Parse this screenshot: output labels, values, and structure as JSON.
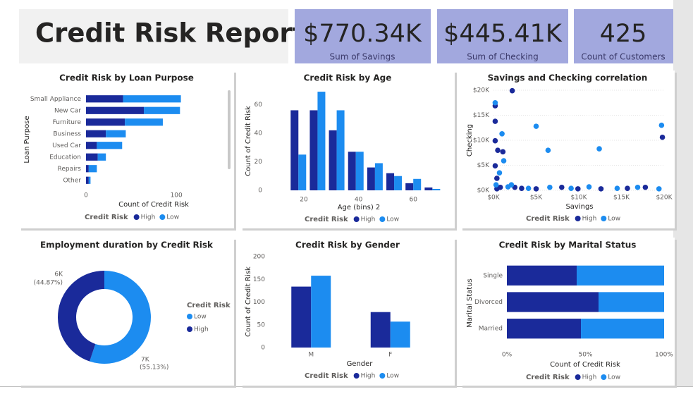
{
  "header": {
    "title": "Credit Risk Report"
  },
  "kpis": [
    {
      "value": "$770.34K",
      "label": "Sum of Savings"
    },
    {
      "value": "$445.41K",
      "label": "Sum of Checking"
    },
    {
      "value": "425",
      "label": "Count of Customers"
    }
  ],
  "chart_data": [
    {
      "type": "bar",
      "orientation": "horizontal",
      "stacked": true,
      "title": "Credit Risk by Loan Purpose",
      "x_label": "Count of Credit Risk",
      "y_label": "Loan Purpose",
      "legend_title": "Credit Risk",
      "categories": [
        "Small Appliance",
        "New Car",
        "Furniture",
        "Business",
        "Used Car",
        "Education",
        "Repairs",
        "Other"
      ],
      "series": [
        {
          "name": "High",
          "color": "#1a2a9a",
          "values": [
            41,
            64,
            43,
            22,
            12,
            13,
            3,
            3
          ]
        },
        {
          "name": "Low",
          "color": "#1c8cf0",
          "values": [
            64,
            40,
            42,
            22,
            28,
            9,
            9,
            2
          ]
        }
      ],
      "xlim": [
        0,
        110
      ],
      "xticks": [
        0,
        100
      ]
    },
    {
      "type": "bar",
      "orientation": "vertical",
      "title": "Credit Risk by Age",
      "x_label": "Age (bins) 2",
      "y_label": "Count of Credit Risk",
      "legend_title": "Credit Risk",
      "x": [
        18,
        25,
        32,
        39,
        46,
        53,
        60,
        67
      ],
      "series": [
        {
          "name": "High",
          "color": "#1a2a9a",
          "values": [
            56,
            56,
            42,
            27,
            16,
            12,
            5,
            2
          ]
        },
        {
          "name": "Low",
          "color": "#1c8cf0",
          "values": [
            25,
            69,
            56,
            27,
            19,
            10,
            8,
            1
          ]
        }
      ],
      "xlim": [
        12,
        70
      ],
      "xticks": [
        20,
        40,
        60
      ],
      "ylim": [
        0,
        72
      ],
      "yticks": [
        0,
        20,
        40,
        60
      ]
    },
    {
      "type": "scatter",
      "title": "Savings and Checking correlation",
      "x_label": "Savings",
      "y_label": "Checking",
      "legend_title": "Credit Risk",
      "series": [
        {
          "name": "High",
          "color": "#1a2a9a",
          "x": [
            2200,
            19800,
            200,
            500,
            200,
            200,
            1100,
            400,
            800,
            2500,
            5000,
            8000,
            12600,
            15700,
            17800,
            400,
            3300,
            9900,
            200
          ],
          "y": [
            19900,
            10600,
            9900,
            8000,
            4900,
            13800,
            7700,
            2400,
            600,
            600,
            300,
            600,
            300,
            400,
            600,
            300,
            400,
            300,
            16900
          ]
        },
        {
          "name": "Low",
          "color": "#1c8cf0",
          "x": [
            19700,
            5000,
            12400,
            6400,
            200,
            1000,
            1200,
            300,
            1700,
            4100,
            6600,
            9100,
            11200,
            14500,
            16900,
            19400,
            2100,
            700
          ],
          "y": [
            13000,
            12800,
            8300,
            8000,
            17500,
            11300,
            5900,
            1100,
            700,
            400,
            600,
            400,
            700,
            400,
            600,
            300,
            1100,
            3500
          ]
        }
      ],
      "xlim": [
        0,
        20000
      ],
      "xticks": [
        {
          "value": 0,
          "label": "$0K"
        },
        {
          "value": 5000,
          "label": "$5K"
        },
        {
          "value": 10000,
          "label": "$10K"
        },
        {
          "value": 15000,
          "label": "$15K"
        },
        {
          "value": 20000,
          "label": "$20K"
        }
      ],
      "ylim": [
        0,
        20000
      ],
      "yticks": [
        {
          "value": 0,
          "label": "$0K"
        },
        {
          "value": 5000,
          "label": "$5K"
        },
        {
          "value": 10000,
          "label": "$10K"
        },
        {
          "value": 15000,
          "label": "$15K"
        },
        {
          "value": 20000,
          "label": "$20K"
        }
      ]
    },
    {
      "type": "pie",
      "hole": true,
      "title": "Employment duration by Credit Risk",
      "legend_title": "Credit Risk",
      "categories": [
        "Low",
        "High"
      ],
      "colors": [
        "#1c8cf0",
        "#1a2a9a"
      ],
      "values": [
        55.13,
        44.87
      ],
      "value_labels": [
        "(55.13%)",
        "(44.87%)"
      ],
      "amount_labels": [
        "7K",
        "6K"
      ]
    },
    {
      "type": "bar",
      "orientation": "vertical",
      "title": "Credit Risk by Gender",
      "x_label": "Gender",
      "y_label": "Count of Credit Risk",
      "legend_title": "Credit Risk",
      "categories": [
        "M",
        "F"
      ],
      "series": [
        {
          "name": "High",
          "color": "#1a2a9a",
          "values": [
            134,
            78
          ]
        },
        {
          "name": "Low",
          "color": "#1c8cf0",
          "values": [
            158,
            57
          ]
        }
      ],
      "ylim": [
        0,
        200
      ],
      "yticks": [
        0,
        50,
        100,
        150,
        200
      ]
    },
    {
      "type": "bar",
      "orientation": "horizontal",
      "stacked": true,
      "title": "Credit Risk by Marital Status",
      "x_label": "Count of Credit Risk",
      "y_label": "Marital Status",
      "legend_title": "Credit Risk",
      "categories": [
        "Single",
        "Divorced",
        "Married"
      ],
      "series": [
        {
          "name": "High",
          "color": "#1a2a9a",
          "values": [
            44.4,
            58.3,
            47.1
          ]
        },
        {
          "name": "Low",
          "color": "#1c8cf0",
          "values": [
            55.6,
            41.7,
            52.9
          ]
        }
      ],
      "xlim": [
        0,
        100
      ],
      "xticks": [
        {
          "value": 0,
          "label": "0%"
        },
        {
          "value": 50,
          "label": "50%"
        },
        {
          "value": 100,
          "label": "100%"
        }
      ]
    }
  ]
}
